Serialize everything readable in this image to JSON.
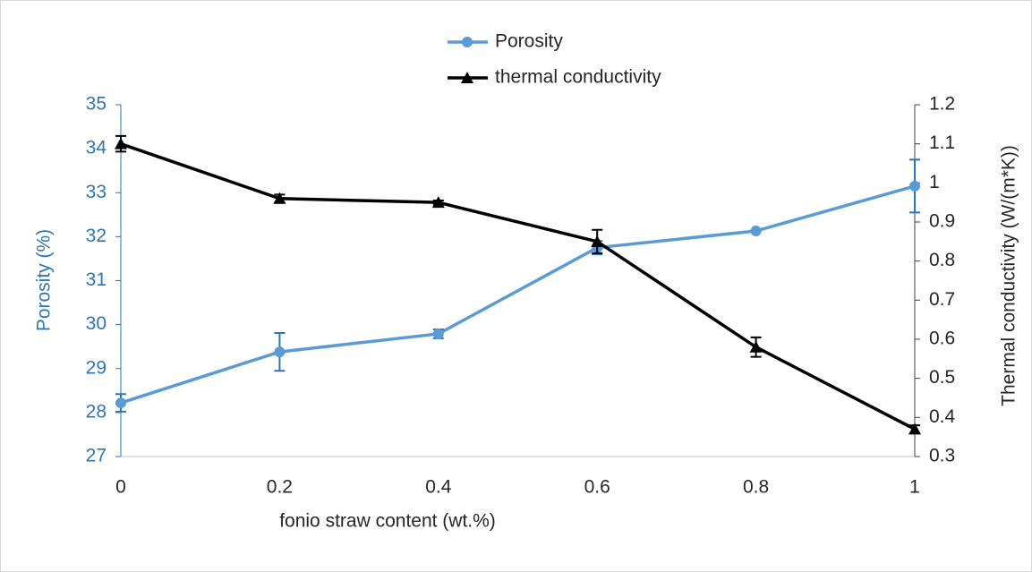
{
  "chart_data": {
    "type": "line",
    "x_label": "fonio straw content (wt.%)",
    "y_label": "Porosity (%)",
    "y2_label": "Thermal conductivity (W/(m*K))",
    "x": [
      0,
      0.2,
      0.4,
      0.6,
      0.8,
      1
    ],
    "xlim": [
      0,
      1
    ],
    "xticks": [
      0,
      0.2,
      0.4,
      0.6,
      0.8,
      1
    ],
    "ylim": [
      27,
      35
    ],
    "yticks": [
      27,
      28,
      29,
      30,
      31,
      32,
      33,
      34,
      35
    ],
    "y2lim": [
      0.3,
      1.2
    ],
    "y2ticks": [
      0.3,
      0.4,
      0.5,
      0.6,
      0.7,
      0.8,
      0.9,
      1,
      1.1,
      1.2
    ],
    "axis_color": "#2e75b6",
    "series": [
      {
        "name": "Porosity",
        "color": "#5b9bd5",
        "error_color": "#2e75b6",
        "marker": "circle",
        "values": [
          28.22,
          29.38,
          29.79,
          31.75,
          32.13,
          33.15
        ],
        "errors": [
          0.2,
          0.43,
          0.1,
          0.15,
          0,
          0.6
        ]
      },
      {
        "name": "thermal conductivity",
        "color": "#000000",
        "error_color": "#000000",
        "marker": "triangle",
        "axis": "y2",
        "values": [
          1.1,
          0.96,
          0.95,
          0.85,
          0.58,
          0.37
        ],
        "errors": [
          0.02,
          0.01,
          0.005,
          0.03,
          0.025,
          0.01
        ]
      }
    ]
  }
}
